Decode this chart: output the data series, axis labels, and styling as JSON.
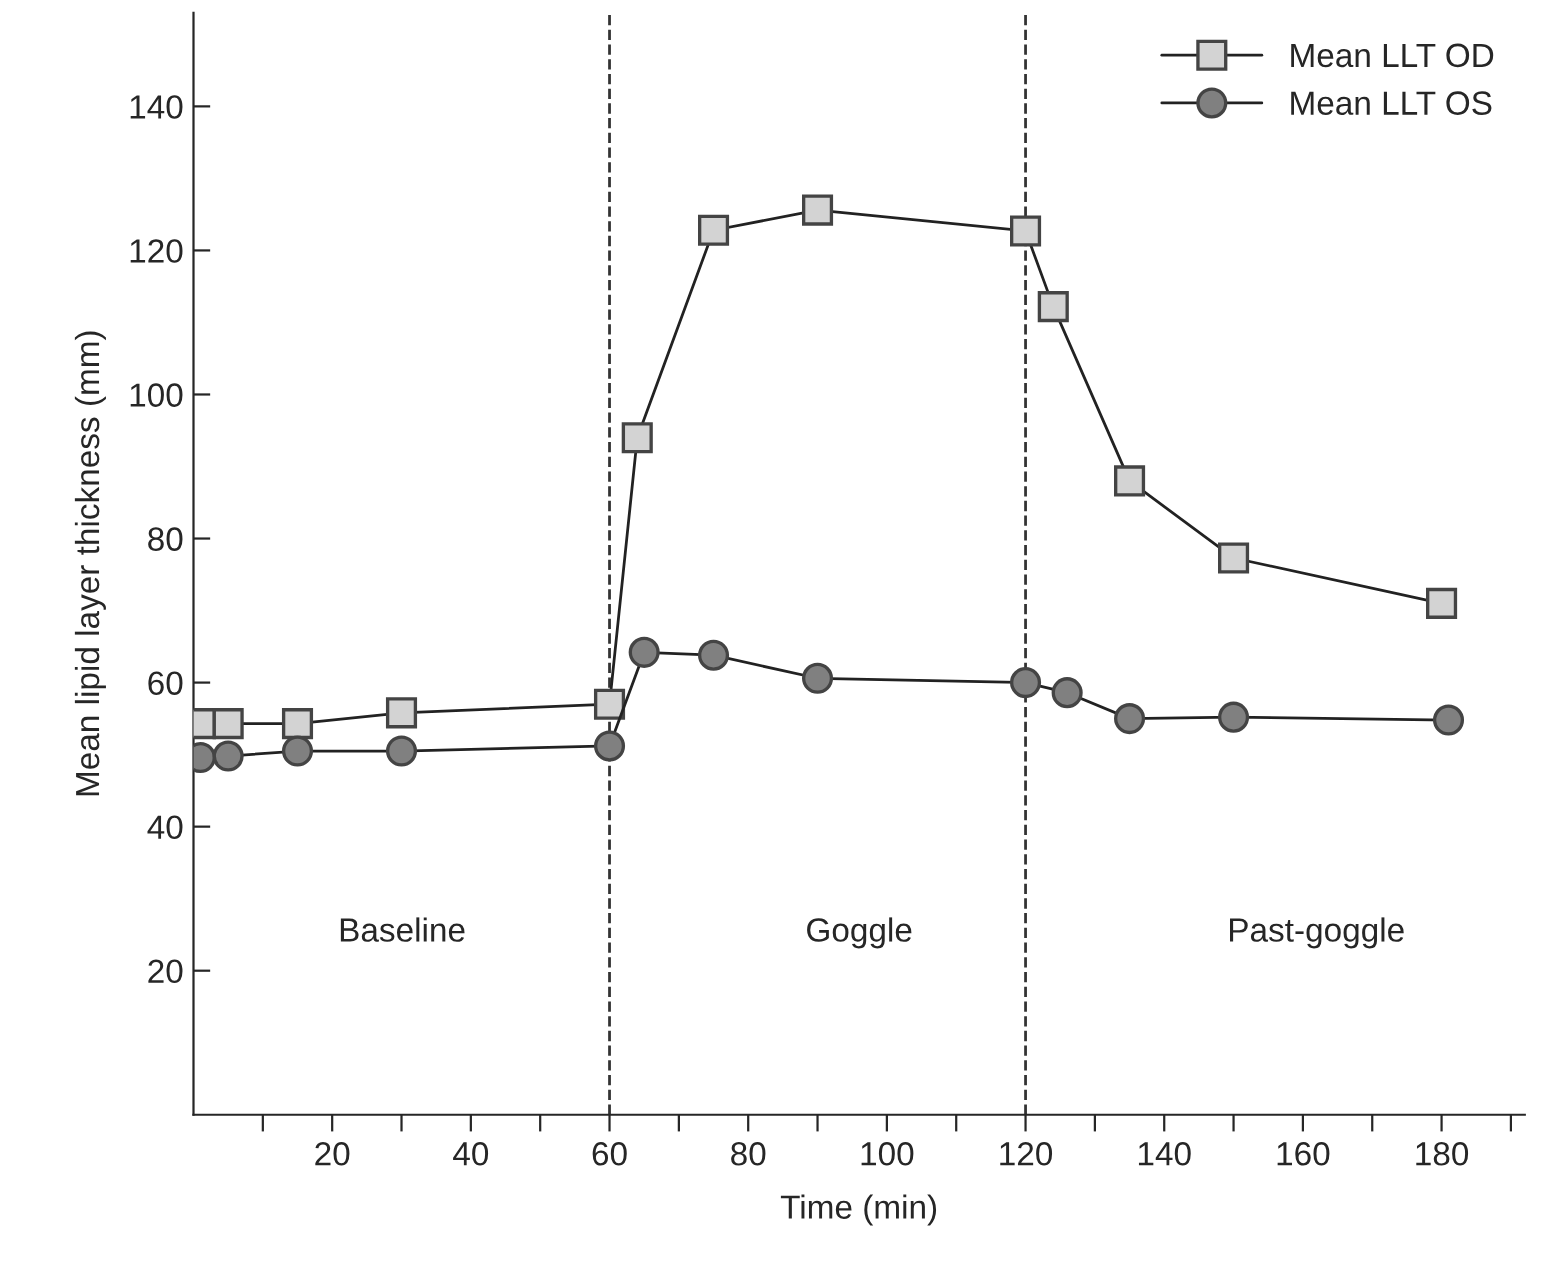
{
  "chart_data": {
    "type": "line",
    "xlabel": "Time (min)",
    "ylabel": "Mean lipid layer thickness (mm)",
    "series": [
      {
        "name": "Mean LLT OD",
        "color": "#d3d3d3",
        "marker": "square",
        "x": [
          1,
          5,
          15,
          30,
          60,
          64,
          75,
          90,
          120,
          124,
          135,
          150,
          180
        ],
        "values": [
          54.3,
          54.3,
          54.3,
          55.8,
          57.0,
          94.0,
          122.8,
          125.6,
          122.7,
          112.2,
          88.0,
          77.3,
          71.0
        ]
      },
      {
        "name": "Mean LLT OS",
        "color": "#808080",
        "marker": "circle",
        "x": [
          1,
          5,
          15,
          30,
          60,
          65,
          75,
          90,
          120,
          126,
          135,
          150,
          181
        ],
        "values": [
          49.6,
          49.8,
          50.5,
          50.5,
          51.2,
          64.2,
          63.8,
          60.6,
          60.0,
          58.6,
          55.0,
          55.2,
          54.8
        ]
      }
    ],
    "xlim": [
      0,
      192
    ],
    "ylim": [
      0,
      153
    ],
    "xticks": [
      {
        "value": 10,
        "label": null
      },
      20,
      {
        "value": 30,
        "label": null
      },
      40,
      {
        "value": 50,
        "label": null
      },
      60,
      {
        "value": 70,
        "label": null
      },
      80,
      {
        "value": 90,
        "label": null
      },
      100,
      {
        "value": 110,
        "label": null
      },
      120,
      {
        "value": 130,
        "label": null
      },
      140,
      {
        "value": 150,
        "label": null
      },
      160,
      {
        "value": 170,
        "label": null
      },
      180,
      {
        "value": 190,
        "label": null
      }
    ],
    "yticks": [
      20,
      40,
      60,
      80,
      100,
      120,
      140
    ],
    "ref_lines": [
      {
        "axis": "x",
        "value": 60,
        "line_style": "dashed",
        "color": "#333333"
      },
      {
        "axis": "x",
        "value": 120,
        "line_style": "dashed",
        "color": "#333333"
      }
    ],
    "annotations": [
      "Baseline",
      "Goggle",
      "Past-goggle"
    ],
    "legend": "top right",
    "grid": false,
    "line_style": "solid"
  }
}
